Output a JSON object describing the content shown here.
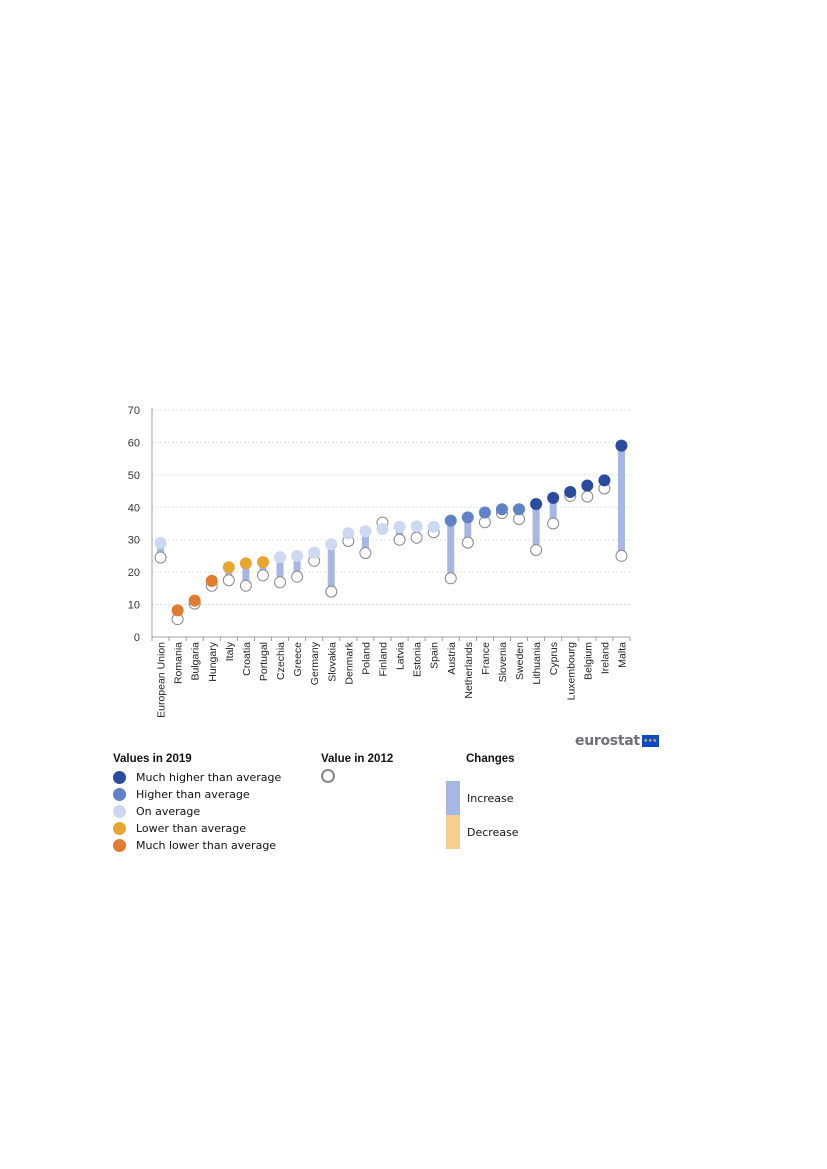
{
  "chart_data": {
    "type": "dot-change",
    "categories": [
      "European Union",
      "Romania",
      "Bulgaria",
      "Hungary",
      "Italy",
      "Croatia",
      "Portugal",
      "Czechia",
      "Greece",
      "Germany",
      "Slovakia",
      "Denmark",
      "Poland",
      "Finland",
      "Latvia",
      "Estonia",
      "Spain",
      "Austria",
      "Netherlands",
      "France",
      "Slovenia",
      "Sweden",
      "Lithuania",
      "Cyprus",
      "Luxembourg",
      "Belgium",
      "Ireland",
      "Malta"
    ],
    "series": [
      {
        "name": "Values in 2019",
        "values": [
          29.0,
          8.2,
          11.2,
          17.3,
          21.5,
          22.7,
          23.1,
          24.6,
          25.0,
          26.0,
          28.6,
          32.0,
          32.6,
          33.3,
          34.0,
          34.1,
          34.0,
          35.9,
          36.9,
          38.4,
          39.4,
          39.4,
          41.0,
          42.9,
          44.7,
          46.7,
          48.3,
          59.0
        ]
      },
      {
        "name": "Value in 2012",
        "values": [
          24.5,
          5.5,
          10.3,
          15.8,
          17.5,
          15.8,
          19.0,
          16.9,
          18.6,
          23.5,
          14.0,
          29.6,
          25.9,
          35.3,
          30.0,
          30.6,
          32.3,
          18.1,
          29.1,
          35.4,
          38.2,
          36.4,
          26.8,
          35.0,
          43.5,
          43.3,
          45.8,
          25.0
        ]
      }
    ],
    "classes_2019": [
      "avg",
      "mlow",
      "mlow",
      "mlow",
      "low",
      "low",
      "low",
      "avg",
      "avg",
      "avg",
      "avg",
      "avg",
      "avg",
      "avg",
      "avg",
      "avg",
      "avg",
      "high",
      "high",
      "high",
      "high",
      "high",
      "mhigh",
      "mhigh",
      "mhigh",
      "mhigh",
      "mhigh",
      "mhigh"
    ],
    "ylim": [
      0,
      70
    ],
    "yticks": [
      "0",
      "10",
      "20",
      "30",
      "40",
      "50",
      "60",
      "70"
    ],
    "grid": true,
    "colors": {
      "mhigh": "#2a4b9e",
      "high": "#6182c6",
      "avg": "#cdd9f0",
      "low": "#e8a631",
      "mlow": "#e07b32",
      "increase": "#a7b7e3",
      "decrease": "#f7ce90",
      "ring": "#8a8a8a"
    }
  },
  "legend": {
    "values_title": "Values in 2019",
    "values_items": [
      {
        "label": "Much higher than average",
        "color": "#2a4b9e"
      },
      {
        "label": "Higher than average",
        "color": "#6182c6"
      },
      {
        "label": "On average",
        "color": "#cdd9f0"
      },
      {
        "label": "Lower than average",
        "color": "#e8a631"
      },
      {
        "label": "Much lower than average",
        "color": "#e07b32"
      }
    ],
    "value2012_title": "Value in 2012",
    "changes_title": "Changes",
    "increase_label": "Increase",
    "decrease_label": "Decrease"
  },
  "logo": {
    "text": "eurostat"
  }
}
